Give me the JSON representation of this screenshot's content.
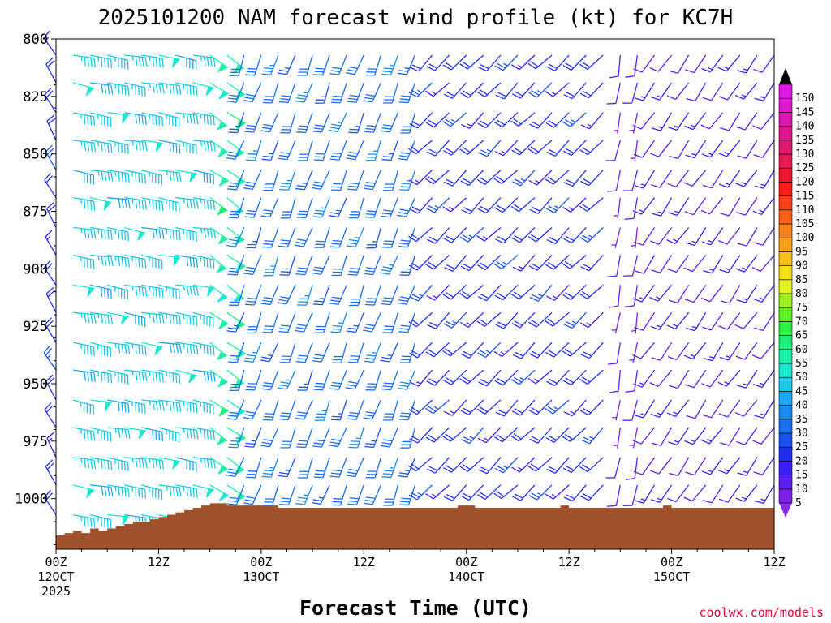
{
  "chart_data": {
    "type": "wind-barb-profile",
    "title": "2025101200 NAM forecast wind profile (kt) for KC7H",
    "xlabel": "Forecast Time (UTC)",
    "credit": "coolwx.com/models",
    "y_axis": {
      "ticks": [
        800,
        825,
        850,
        875,
        900,
        925,
        950,
        975,
        1000
      ],
      "ylim": [
        1022,
        800
      ],
      "inverted": true
    },
    "x_axis": {
      "ticks": [
        {
          "hour": 0,
          "line1": "00Z",
          "line2": "12OCT",
          "line3": "2025"
        },
        {
          "hour": 12,
          "line1": "12Z",
          "line2": "",
          "line3": ""
        },
        {
          "hour": 24,
          "line1": "00Z",
          "line2": "13OCT",
          "line3": ""
        },
        {
          "hour": 36,
          "line1": "12Z",
          "line2": "",
          "line3": ""
        },
        {
          "hour": 48,
          "line1": "00Z",
          "line2": "14OCT",
          "line3": ""
        },
        {
          "hour": 60,
          "line1": "12Z",
          "line2": "",
          "line3": ""
        },
        {
          "hour": 72,
          "line1": "00Z",
          "line2": "15OCT",
          "line3": ""
        },
        {
          "hour": 84,
          "line1": "12Z",
          "line2": "",
          "line3": ""
        }
      ],
      "xlim": [
        0,
        84
      ]
    },
    "colorbar": {
      "unit": "kt",
      "levels": [
        5,
        10,
        15,
        20,
        25,
        30,
        35,
        40,
        45,
        50,
        55,
        60,
        65,
        70,
        75,
        80,
        85,
        90,
        95,
        100,
        105,
        110,
        115,
        120,
        125,
        130,
        135,
        140,
        145,
        150
      ],
      "colors": [
        "#7a1fe8",
        "#5c1ef0",
        "#3c1ef7",
        "#2030f0",
        "#1a52f0",
        "#1a6ef0",
        "#1a8af0",
        "#1aa8f0",
        "#1ac8e8",
        "#1ae8d0",
        "#1af0a8",
        "#1af07a",
        "#30f040",
        "#60f020",
        "#a0f020",
        "#e0f020",
        "#f8e018",
        "#f8c018",
        "#f8a018",
        "#f88018",
        "#f86018",
        "#f84018",
        "#f82018",
        "#f01830",
        "#e81850",
        "#e01870",
        "#e01890",
        "#e018b0",
        "#e018d0",
        "#e018e8"
      ],
      "over_color": "#000000",
      "under_color": "#8a2be2"
    },
    "surface": {
      "color": "#a0522d",
      "hours": [
        0,
        1,
        2,
        3,
        4,
        5,
        6,
        7,
        8,
        9,
        10,
        11,
        12,
        13,
        14,
        15,
        16,
        17,
        18,
        19,
        20,
        21,
        22,
        23,
        24,
        25,
        26,
        27,
        28,
        29,
        30,
        31,
        32,
        33,
        34,
        35,
        36,
        37,
        38,
        39,
        40,
        41,
        42,
        43,
        44,
        45,
        46,
        47,
        48,
        49,
        50,
        51,
        52,
        53,
        54,
        55,
        56,
        57,
        58,
        59,
        60,
        61,
        62,
        63,
        64,
        65,
        66,
        67,
        68,
        69,
        70,
        71,
        72,
        73,
        74,
        75,
        76,
        77,
        78,
        79,
        80,
        81,
        82,
        83,
        84
      ],
      "pressure": [
        1016,
        1015,
        1014,
        1015,
        1013,
        1014,
        1013,
        1012,
        1011,
        1010,
        1010,
        1009,
        1008,
        1007,
        1006,
        1005,
        1004,
        1003,
        1002,
        1002,
        1003,
        1003,
        1003,
        1003,
        1003,
        1003,
        1004,
        1004,
        1004,
        1004,
        1004,
        1004,
        1004,
        1004,
        1004,
        1004,
        1004,
        1004,
        1004,
        1004,
        1004,
        1004,
        1004,
        1004,
        1004,
        1004,
        1004,
        1003,
        1003,
        1004,
        1004,
        1004,
        1004,
        1004,
        1004,
        1004,
        1004,
        1004,
        1004,
        1003,
        1004,
        1004,
        1004,
        1004,
        1004,
        1004,
        1004,
        1004,
        1004,
        1004,
        1004,
        1003,
        1004,
        1004,
        1004,
        1004,
        1004,
        1004,
        1004,
        1004,
        1004,
        1004,
        1004,
        1004,
        1004
      ]
    },
    "barbs": {
      "hours_step": 2,
      "hours_count": 43,
      "pressure_levels": [
        800,
        812,
        825,
        837,
        850,
        862,
        875,
        887,
        900,
        912,
        925,
        937,
        950,
        962,
        975,
        987,
        1000
      ],
      "regimes": [
        {
          "from_hour": 0,
          "to_hour": 2,
          "dir": 330,
          "speed": 20
        },
        {
          "from_hour": 2,
          "to_hour": 18,
          "dir": 100,
          "speed": 45
        },
        {
          "from_hour": 18,
          "to_hour": 22,
          "dir": 125,
          "speed": 55
        },
        {
          "from_hour": 22,
          "to_hour": 44,
          "dir": 200,
          "speed": 30
        },
        {
          "from_hour": 44,
          "to_hour": 66,
          "dir": 225,
          "speed": 20
        },
        {
          "from_hour": 66,
          "to_hour": 70,
          "dir": 190,
          "speed": 8
        },
        {
          "from_hour": 70,
          "to_hour": 84,
          "dir": 215,
          "speed": 12
        }
      ]
    }
  }
}
